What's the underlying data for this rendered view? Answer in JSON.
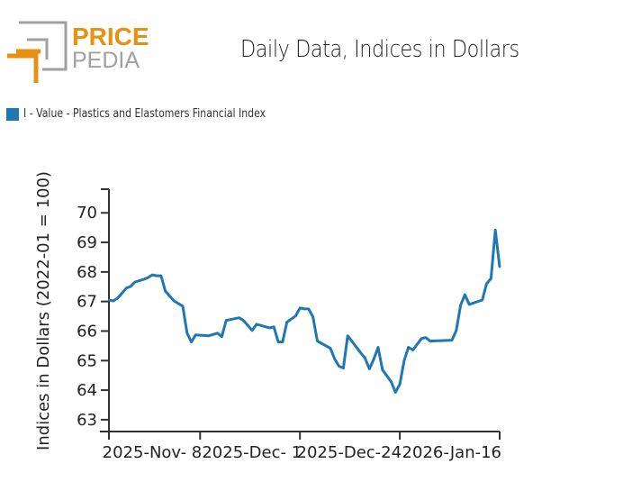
{
  "brand": {
    "name_top": "PRICE",
    "name_bottom": "PEDIA",
    "colors": {
      "orange": "#e8900f",
      "gray": "#a0a0a0"
    }
  },
  "legend": {
    "label": "I - Value - Plastics and Elastomers Financial Index",
    "color": "#1f77b4"
  },
  "chart_data": {
    "type": "line",
    "title": "Daily Data, Indices in Dollars",
    "xlabel": "",
    "ylabel": "Indices in Dollars (2022-01 = 100)",
    "xlim": [
      "2025-10-18",
      "2026-01-16"
    ],
    "ylim": [
      62.6,
      70.8
    ],
    "x_ticks": [
      {
        "date": "2025-11-08",
        "label": "2025-Nov- 8"
      },
      {
        "date": "2025-12-01",
        "label": "2025-Dec- 1"
      },
      {
        "date": "2025-12-24",
        "label": "2025-Dec-24"
      },
      {
        "date": "2026-01-16",
        "label": "2026-Jan-16"
      }
    ],
    "y_ticks": [
      63,
      64,
      65,
      66,
      67,
      68,
      69,
      70
    ],
    "grid": false,
    "legend_position": "top-left",
    "series": [
      {
        "name": "I - Value - Plastics and Elastomers Financial Index",
        "color": "#1f77b4",
        "x": [
          "2025-10-18",
          "2025-10-19",
          "2025-10-20",
          "2025-10-22",
          "2025-10-23",
          "2025-10-24",
          "2025-10-26",
          "2025-10-27",
          "2025-10-28",
          "2025-10-29",
          "2025-10-30",
          "2025-10-31",
          "2025-11-02",
          "2025-11-04",
          "2025-11-05",
          "2025-11-06",
          "2025-11-07",
          "2025-11-10",
          "2025-11-12",
          "2025-11-13",
          "2025-11-14",
          "2025-11-17",
          "2025-11-18",
          "2025-11-20",
          "2025-11-21",
          "2025-11-24",
          "2025-11-25",
          "2025-11-26",
          "2025-11-27",
          "2025-11-28",
          "2025-11-30",
          "2025-12-01",
          "2025-12-02",
          "2025-12-03",
          "2025-12-04",
          "2025-12-05",
          "2025-12-08",
          "2025-12-09",
          "2025-12-10",
          "2025-12-11",
          "2025-12-12",
          "2025-12-15",
          "2025-12-16",
          "2025-12-17",
          "2025-12-18",
          "2025-12-19",
          "2025-12-20",
          "2025-12-22",
          "2025-12-23",
          "2025-12-24",
          "2025-12-25",
          "2025-12-26",
          "2025-12-27",
          "2025-12-29",
          "2025-12-30",
          "2025-12-31",
          "2026-01-05",
          "2026-01-06",
          "2026-01-07",
          "2026-01-08",
          "2026-01-09",
          "2026-01-12",
          "2026-01-13",
          "2026-01-14",
          "2026-01-15",
          "2026-01-16"
        ],
        "values": [
          67.05,
          67.02,
          67.11,
          67.45,
          67.51,
          67.66,
          67.75,
          67.81,
          67.9,
          67.87,
          67.87,
          67.35,
          67.02,
          66.84,
          65.93,
          65.63,
          65.87,
          65.84,
          65.93,
          65.81,
          66.36,
          66.45,
          66.36,
          66.02,
          66.23,
          66.11,
          66.14,
          65.63,
          65.63,
          66.3,
          66.51,
          66.78,
          66.75,
          66.75,
          66.48,
          65.66,
          65.42,
          65.05,
          64.81,
          64.75,
          65.84,
          65.26,
          65.08,
          64.72,
          65.05,
          65.45,
          64.69,
          64.29,
          63.93,
          64.2,
          65.0,
          65.45,
          65.36,
          65.75,
          65.78,
          65.66,
          65.69,
          66.02,
          66.87,
          67.23,
          66.9,
          67.05,
          67.6,
          67.78,
          69.42,
          68.17
        ]
      }
    ]
  }
}
